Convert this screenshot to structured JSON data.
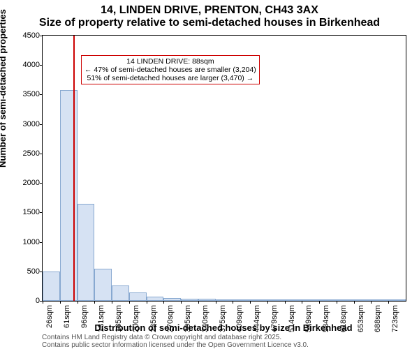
{
  "chart": {
    "type": "histogram",
    "title": "14, LINDEN DRIVE, PRENTON, CH43 3AX",
    "subtitle": "Size of property relative to semi-detached houses in Birkenhead",
    "title_fontsize": 14,
    "subtitle_fontsize": 13,
    "ylabel": "Number of semi-detached properties",
    "xlabel": "Distribution of semi-detached houses by size in Birkenhead",
    "ylim": [
      0,
      4500
    ],
    "yticks": [
      0,
      500,
      1000,
      1500,
      2000,
      2500,
      3000,
      3500,
      4000,
      4500
    ],
    "xticks": [
      "26sqm",
      "61sqm",
      "96sqm",
      "131sqm",
      "165sqm",
      "200sqm",
      "235sqm",
      "270sqm",
      "305sqm",
      "340sqm",
      "375sqm",
      "409sqm",
      "444sqm",
      "479sqm",
      "514sqm",
      "549sqm",
      "584sqm",
      "618sqm",
      "653sqm",
      "688sqm",
      "723sqm"
    ],
    "bar_fill": "#d6e2f3",
    "bar_border": "#87a8d0",
    "background_color": "#ffffff",
    "values": [
      500,
      3580,
      1650,
      550,
      260,
      140,
      70,
      50,
      40,
      30,
      25,
      15,
      10,
      8,
      5,
      5,
      3,
      3,
      2,
      2,
      2
    ],
    "reference_line": {
      "position_sqm": 88,
      "color": "#cc0000"
    },
    "annotation": {
      "line1": "14 LINDEN DRIVE: 88sqm",
      "line2": "← 47% of semi-detached houses are smaller (3,204)",
      "line3": "51% of semi-detached houses are larger (3,470) →",
      "border_color": "#cc0000"
    },
    "attribution": {
      "line1": "Contains HM Land Registry data © Crown copyright and database right 2025.",
      "line2": "Contains public sector information licensed under the Open Government Licence v3.0."
    }
  }
}
